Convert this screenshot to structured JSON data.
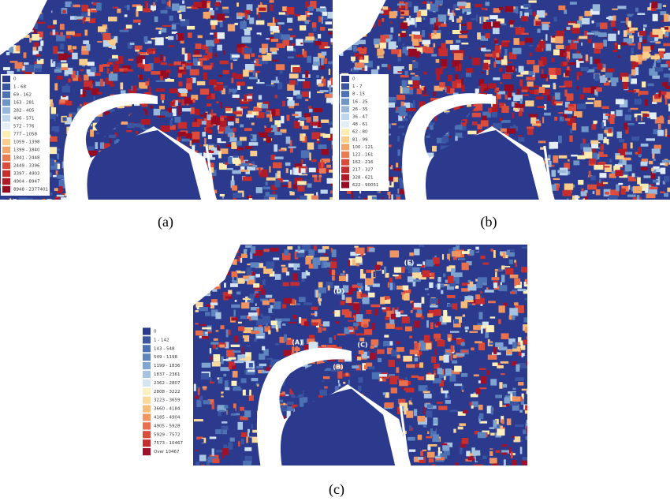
{
  "panels": [
    {
      "caption": "(a)",
      "legend": [
        {
          "label": "0",
          "color": "#2c3a8e"
        },
        {
          "label": "1 - 68",
          "color": "#3a56a3"
        },
        {
          "label": "69 - 162",
          "color": "#4c72b5"
        },
        {
          "label": "163 - 281",
          "color": "#6e96c7"
        },
        {
          "label": "282 - 405",
          "color": "#97b8db"
        },
        {
          "label": "406 - 571",
          "color": "#bed6ec"
        },
        {
          "label": "572 - 776",
          "color": "#e3eef6"
        },
        {
          "label": "777 - 1058",
          "color": "#fdedb3"
        },
        {
          "label": "1059 - 1398",
          "color": "#f9ce8c"
        },
        {
          "label": "1399 - 1840",
          "color": "#f3a569"
        },
        {
          "label": "1841 - 2448",
          "color": "#eb7b52"
        },
        {
          "label": "2449 - 3396",
          "color": "#dc4c3c"
        },
        {
          "label": "3397 - 4903",
          "color": "#c62d2e"
        },
        {
          "label": "4904 - 8947",
          "color": "#b01b27"
        },
        {
          "label": "8948 - 2377401",
          "color": "#960b22"
        }
      ]
    },
    {
      "caption": "(b)",
      "legend": [
        {
          "label": "0",
          "color": "#2c3a8e"
        },
        {
          "label": "1 - 7",
          "color": "#3a56a3"
        },
        {
          "label": "8 - 15",
          "color": "#4c72b5"
        },
        {
          "label": "16 - 25",
          "color": "#6e96c7"
        },
        {
          "label": "26 - 35",
          "color": "#97b8db"
        },
        {
          "label": "36 - 47",
          "color": "#bed6ec"
        },
        {
          "label": "48 - 61",
          "color": "#e3eef6"
        },
        {
          "label": "62 - 80",
          "color": "#fdedb3"
        },
        {
          "label": "81 - 99",
          "color": "#f9ce8c"
        },
        {
          "label": "100 - 121",
          "color": "#f3a569"
        },
        {
          "label": "122 - 161",
          "color": "#eb7b52"
        },
        {
          "label": "162 - 216",
          "color": "#dc4c3c"
        },
        {
          "label": "217 - 327",
          "color": "#c62d2e"
        },
        {
          "label": "328 - 621",
          "color": "#b01b27"
        },
        {
          "label": "622 - 90051",
          "color": "#960b22"
        }
      ]
    },
    {
      "caption": "(c)",
      "legend": [
        {
          "label": "0",
          "color": "#2c3a8e"
        },
        {
          "label": "1 - 142",
          "color": "#3a56a3"
        },
        {
          "label": "143 - 548",
          "color": "#4c72b5"
        },
        {
          "label": "549 - 1198",
          "color": "#5f85be"
        },
        {
          "label": "1199 - 1836",
          "color": "#7fa5d0"
        },
        {
          "label": "1837 - 2361",
          "color": "#a6c4e2"
        },
        {
          "label": "2362 - 2807",
          "color": "#d4e4f2"
        },
        {
          "label": "2808 - 3222",
          "color": "#fdf0c0"
        },
        {
          "label": "3223 - 3659",
          "color": "#fbd99c"
        },
        {
          "label": "3660 - 4184",
          "color": "#f7bb7a"
        },
        {
          "label": "4185 - 4904",
          "color": "#f19660"
        },
        {
          "label": "4905 - 5928",
          "color": "#e8704c"
        },
        {
          "label": "5929 - 7572",
          "color": "#dc4c3c"
        },
        {
          "label": "7573 - 10467",
          "color": "#c62d2e"
        },
        {
          "label": "Over 10467",
          "color": "#a0102a"
        }
      ],
      "annotations": [
        "(A)",
        "(B)",
        "(C)",
        "(D)",
        "(E)"
      ]
    }
  ]
}
